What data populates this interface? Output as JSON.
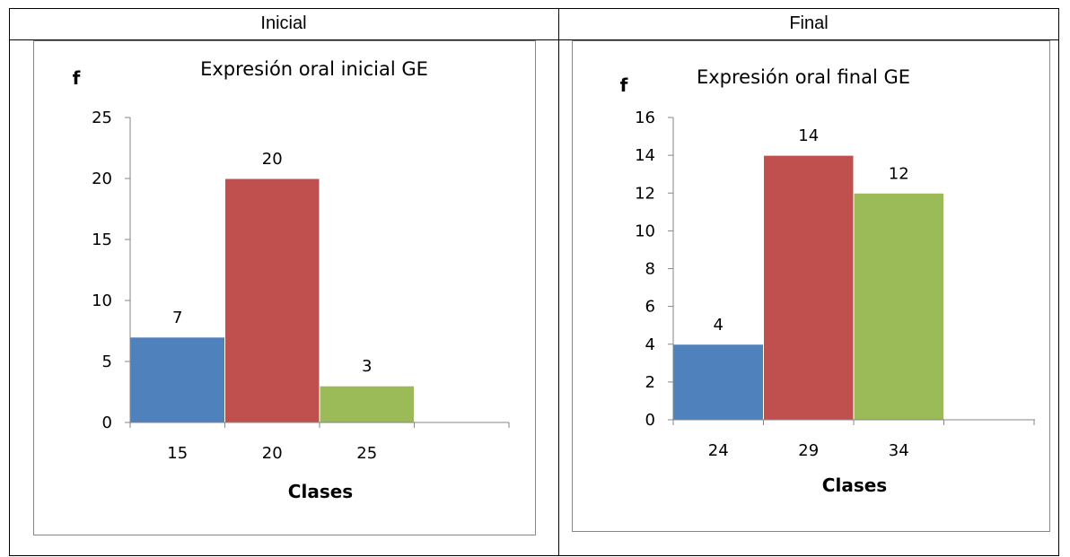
{
  "table": {
    "col_headers": [
      "Inicial",
      "Final"
    ]
  },
  "colors": [
    "#4f81bd",
    "#c0504d",
    "#9bbb59"
  ],
  "chart_data": [
    {
      "type": "bar",
      "title": "Expresión oral inicial GE",
      "ylabel": "f",
      "xlabel": "Clases",
      "categories": [
        "15",
        "20",
        "25"
      ],
      "values": [
        7,
        20,
        3
      ],
      "ylim": [
        0,
        25
      ],
      "yticks": [
        "0",
        "5",
        "10",
        "15",
        "20",
        "25"
      ],
      "data_labels": [
        "7",
        "20",
        "3"
      ],
      "grid": false,
      "legend": "none"
    },
    {
      "type": "bar",
      "title": "Expresión oral final GE",
      "ylabel": "f",
      "xlabel": "Clases",
      "categories": [
        "24",
        "29",
        "34"
      ],
      "values": [
        4,
        14,
        12
      ],
      "ylim": [
        0,
        16
      ],
      "yticks": [
        "0",
        "2",
        "4",
        "6",
        "8",
        "10",
        "12",
        "14",
        "16"
      ],
      "data_labels": [
        "4",
        "14",
        "12"
      ],
      "grid": false,
      "legend": "none"
    }
  ]
}
